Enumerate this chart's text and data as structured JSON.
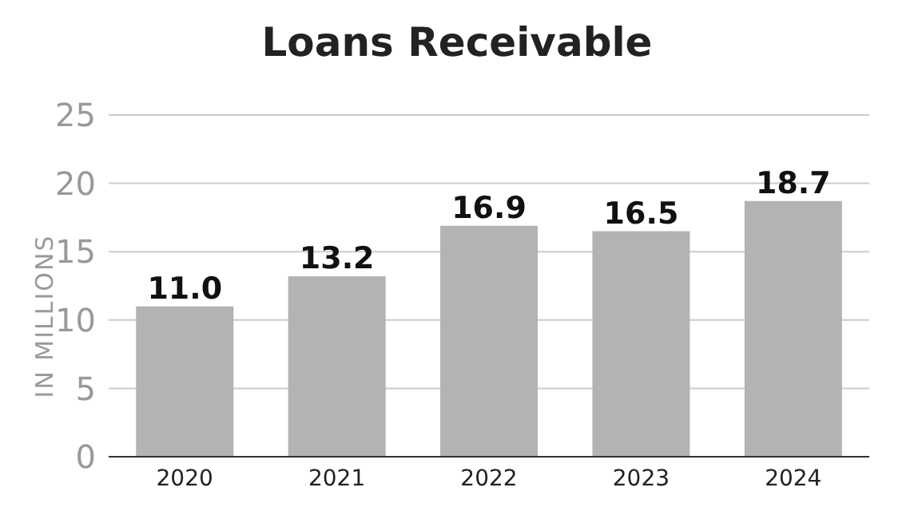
{
  "chart_data": {
    "type": "bar",
    "title": "Loans Receivable",
    "ylabel": "IN MILLIONS",
    "categories": [
      "2020",
      "2021",
      "2022",
      "2023",
      "2024"
    ],
    "values": [
      11.0,
      13.2,
      16.9,
      16.5,
      18.7
    ],
    "value_labels": [
      "11.0",
      "13.2",
      "16.9",
      "16.5",
      "18.7"
    ],
    "color": "#b3b3b3",
    "ylim": [
      0,
      25
    ],
    "yticks": [
      0,
      5,
      10,
      15,
      20,
      25
    ],
    "grid": "y"
  }
}
